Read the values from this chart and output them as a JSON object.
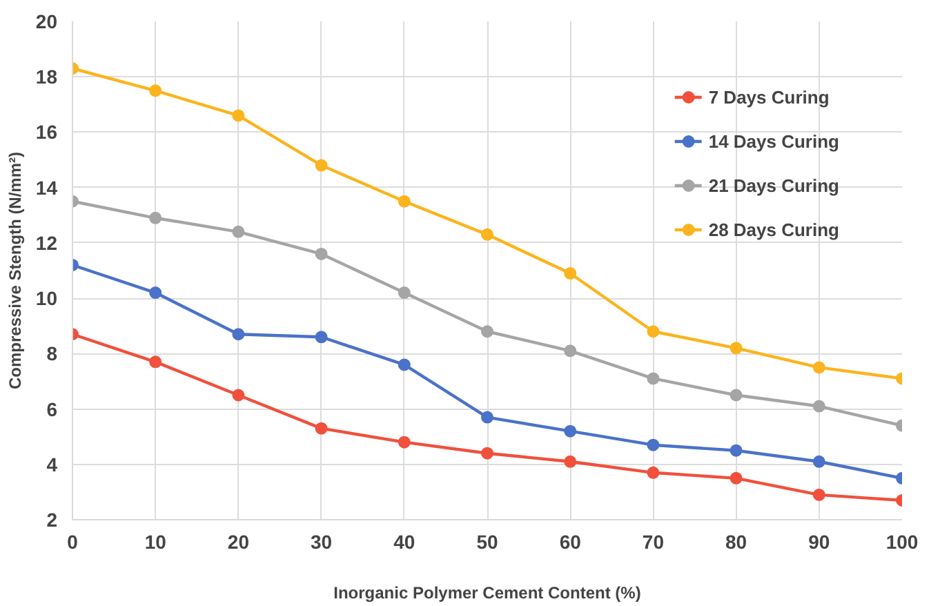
{
  "chart_data": {
    "type": "line",
    "xlabel": "Inorganic Polymer Cement Content (%)",
    "ylabel": "Compressive Stength (N/mm²)",
    "x": [
      0,
      10,
      20,
      30,
      40,
      50,
      60,
      70,
      80,
      90,
      100
    ],
    "series": [
      {
        "name": "7 Days Curing",
        "color": "#f0503c",
        "values": [
          8.7,
          7.7,
          6.5,
          5.3,
          4.8,
          4.4,
          4.1,
          3.7,
          3.5,
          2.9,
          2.7
        ]
      },
      {
        "name": "14 Days Curing",
        "color": "#4a72c8",
        "values": [
          11.2,
          10.2,
          8.7,
          8.6,
          7.6,
          5.7,
          5.2,
          4.7,
          4.5,
          4.1,
          3.5
        ]
      },
      {
        "name": "21 Days Curing",
        "color": "#a5a5a5",
        "values": [
          13.5,
          12.9,
          12.4,
          11.6,
          10.2,
          8.8,
          8.1,
          7.1,
          6.5,
          6.1,
          5.4
        ]
      },
      {
        "name": "28 Days Curing",
        "color": "#fbb41e",
        "values": [
          18.3,
          17.5,
          16.6,
          14.8,
          13.5,
          12.3,
          10.9,
          8.8,
          8.2,
          7.5,
          7.1
        ]
      }
    ],
    "xlim": [
      0,
      100
    ],
    "xticks": [
      0,
      10,
      20,
      30,
      40,
      50,
      60,
      70,
      80,
      90,
      100
    ],
    "ylim": [
      2,
      20
    ],
    "yticks": [
      2,
      4,
      6,
      8,
      10,
      12,
      14,
      16,
      18,
      20
    ],
    "grid": true,
    "legend": "top right",
    "marker": "circle",
    "line_style": "solid"
  }
}
